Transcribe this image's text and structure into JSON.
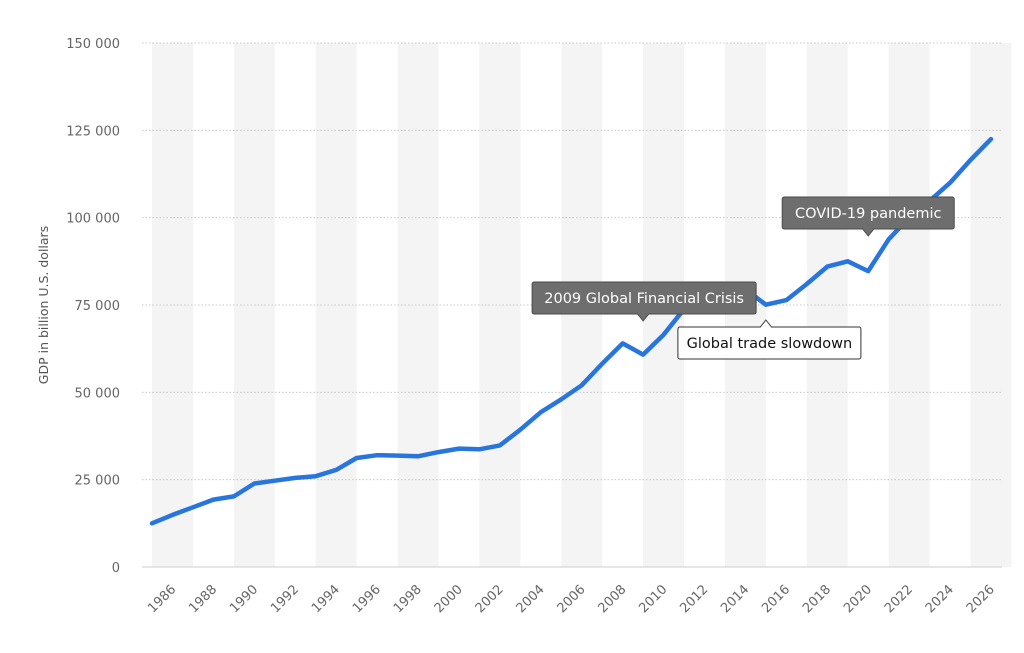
{
  "chart_data": {
    "type": "line",
    "ylabel": "GDP in billion U.S. dollars",
    "xlabel": "",
    "ylim": [
      0,
      150000
    ],
    "yticks": [
      0,
      25000,
      50000,
      75000,
      100000,
      125000,
      150000
    ],
    "ytick_labels": [
      "0",
      "25 000",
      "50 000",
      "75 000",
      "100 000",
      "125 000",
      "150 000"
    ],
    "xlim": [
      1985,
      2026
    ],
    "xticks": [
      1986,
      1988,
      1990,
      1992,
      1994,
      1996,
      1998,
      2000,
      2002,
      2004,
      2006,
      2008,
      2010,
      2012,
      2014,
      2016,
      2018,
      2020,
      2022,
      2024,
      2026
    ],
    "xtick_labels": [
      "1986",
      "1988",
      "1990",
      "1992",
      "1994",
      "1996",
      "1998",
      "2000",
      "2002",
      "2004",
      "2006",
      "2008",
      "2010",
      "2012",
      "2014",
      "2016",
      "2018",
      "2020",
      "2022",
      "2024",
      "2026"
    ],
    "grid": true,
    "line_color": "#2876dd",
    "x": [
      1985,
      1986,
      1987,
      1988,
      1989,
      1990,
      1991,
      1992,
      1993,
      1994,
      1995,
      1996,
      1997,
      1998,
      1999,
      2000,
      2001,
      2002,
      2003,
      2004,
      2005,
      2006,
      2007,
      2008,
      2009,
      2010,
      2011,
      2012,
      2013,
      2014,
      2015,
      2016,
      2017,
      2018,
      2019,
      2020,
      2021,
      2022,
      2023,
      2024,
      2025,
      2026
    ],
    "values": [
      12500,
      14900,
      17100,
      19300,
      20200,
      23900,
      24700,
      25500,
      26000,
      27800,
      31200,
      32000,
      31900,
      31700,
      32900,
      33900,
      33700,
      34800,
      39300,
      44300,
      48000,
      52000,
      58200,
      64000,
      60800,
      66500,
      73800,
      75000,
      77200,
      79500,
      75100,
      76400,
      81000,
      86000,
      87500,
      84700,
      93800,
      100000,
      104800,
      110000,
      116500,
      122500
    ],
    "annotations": [
      {
        "text": "2009 Global Financial Crisis",
        "x": 2009,
        "y": 64000,
        "style": "dark"
      },
      {
        "text": "Global trade slowdown",
        "x": 2015,
        "y": 75100,
        "style": "light"
      },
      {
        "text": "COVID-19 pandemic",
        "x": 2020,
        "y": 101000,
        "style": "dark"
      }
    ]
  }
}
